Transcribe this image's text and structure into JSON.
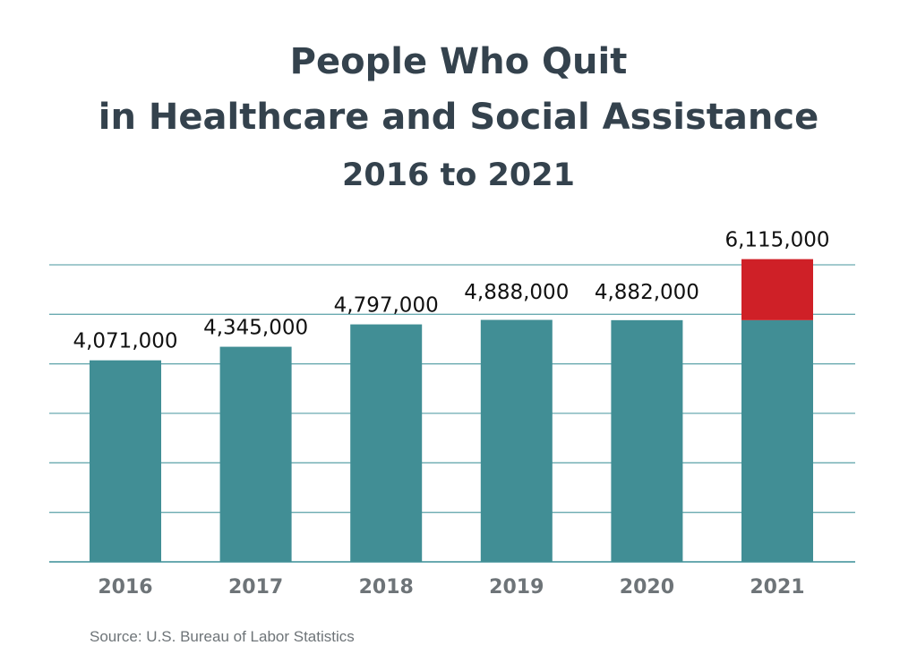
{
  "chart_data": {
    "type": "bar",
    "title": "People Who Quit\nin Healthcare and Social Assistance",
    "title_lines": [
      "People Who Quit",
      "in Healthcare and Social Assistance"
    ],
    "subtitle": "2016 to 2021",
    "categories": [
      "2016",
      "2017",
      "2018",
      "2019",
      "2020",
      "2021"
    ],
    "values": [
      4071000,
      4345000,
      4797000,
      4888000,
      4882000,
      6115000
    ],
    "data_labels": [
      "4,071,000",
      "4,345,000",
      "4,797,000",
      "4,888,000",
      "4,882,000",
      "6,115,000"
    ],
    "highlight": {
      "category": "2021",
      "baseline_value": 4882000,
      "color": "#cf2027"
    },
    "xlabel": "",
    "ylabel": "",
    "ylim": [
      0,
      6000000
    ],
    "grid": true,
    "legend": "none",
    "colors": {
      "bar": "#418e95",
      "highlight": "#cf2027",
      "grid": "#6aaab0",
      "label": "#111111",
      "tick": "#6e7478"
    }
  },
  "source": "Source: U.S. Bureau of Labor Statistics"
}
